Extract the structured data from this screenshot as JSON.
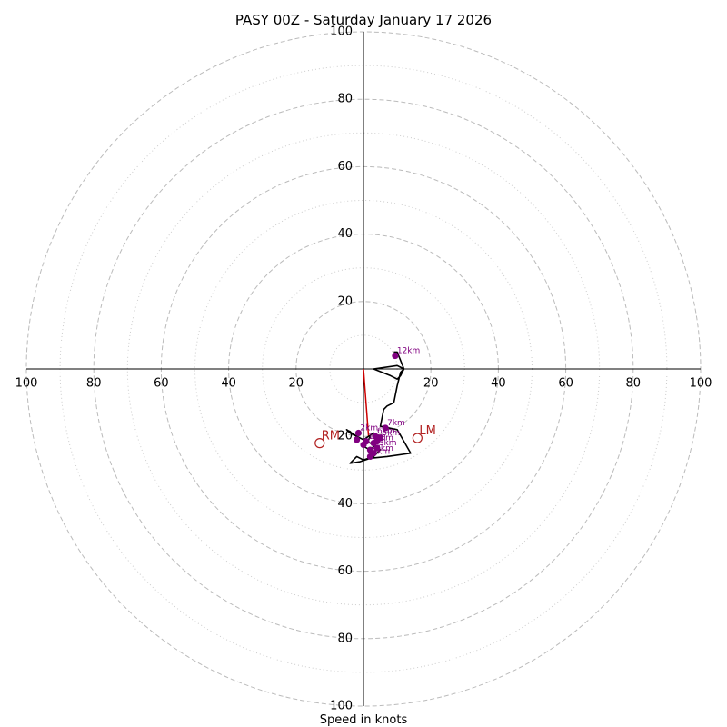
{
  "chart_data": {
    "type": "hodograph",
    "title": "PASY 00Z - Saturday January 17 2026",
    "xlabel": "Speed in knots",
    "range": [
      -100,
      100
    ],
    "ring_major": [
      20,
      40,
      60,
      80,
      100
    ],
    "ring_minor": [
      10,
      30,
      50,
      70,
      90
    ],
    "tick_labels": {
      "x_left": [
        "100",
        "80",
        "60",
        "40",
        "20"
      ],
      "x_right": [
        "20",
        "40",
        "60",
        "80",
        "100"
      ],
      "y_up": [
        "20",
        "40",
        "60",
        "80",
        "100"
      ],
      "y_down": [
        "20",
        "40",
        "60",
        "80",
        "100"
      ]
    },
    "hodograph_line": [
      [
        2,
        -20
      ],
      [
        1,
        -22
      ],
      [
        0,
        -23
      ],
      [
        2,
        -24
      ],
      [
        4,
        -22
      ],
      [
        3,
        -19
      ],
      [
        0,
        -21
      ],
      [
        -4,
        -19
      ],
      [
        -5,
        -18
      ],
      [
        -2,
        -20
      ],
      [
        2,
        -22
      ],
      [
        5,
        -24
      ],
      [
        3,
        -26
      ],
      [
        0,
        -27
      ],
      [
        -2,
        -26
      ],
      [
        -4,
        -28
      ],
      [
        -1,
        -27.5
      ],
      [
        2,
        -26.5
      ],
      [
        7,
        -26
      ],
      [
        14,
        -25
      ],
      [
        10,
        -18
      ],
      [
        5,
        -17
      ],
      [
        6,
        -12
      ],
      [
        7,
        -11
      ],
      [
        9,
        -10
      ],
      [
        10,
        -5
      ],
      [
        11,
        -1
      ],
      [
        12,
        0
      ],
      [
        10,
        1
      ],
      [
        3,
        0
      ],
      [
        8,
        -2
      ],
      [
        10,
        -3
      ],
      [
        11,
        -2
      ],
      [
        12,
        0
      ],
      [
        10,
        5
      ],
      [
        9,
        5
      ]
    ],
    "km_points": [
      {
        "label": "12km",
        "u": 9.4,
        "v": 3.9
      },
      {
        "label": "7km",
        "u": 6.5,
        "v": -17.5
      },
      {
        "label": "2km",
        "u": -1.5,
        "v": -19
      },
      {
        "label": "6km",
        "u": 3.5,
        "v": -20
      },
      {
        "label": "5km",
        "u": 5,
        "v": -20.5
      },
      {
        "label": "1km",
        "u": 0.8,
        "v": -21.5
      },
      {
        "label": "4km",
        "u": 3,
        "v": -22
      },
      {
        "label": "3km",
        "u": 4,
        "v": -23.5
      },
      {
        "label": "8km",
        "u": 3,
        "v": -25
      },
      {
        "label": "9km",
        "u": 2,
        "v": -26
      }
    ],
    "extra_points": [
      [
        -2,
        -21
      ],
      [
        0,
        -22.5
      ],
      [
        2,
        -24
      ],
      [
        4,
        -21.5
      ]
    ],
    "shear_line": [
      [
        0,
        0
      ],
      [
        1.5,
        -20
      ]
    ],
    "storm_motion": {
      "RM": {
        "label": "RM",
        "u": -13,
        "v": -22
      },
      "LM": {
        "label": "LM",
        "u": 16,
        "v": -20.5
      }
    },
    "colors": {
      "ring": "#bbbbbb",
      "trace": "#000000",
      "points": "#800080",
      "shear": "#cc0000",
      "motion": "#b22222"
    }
  }
}
